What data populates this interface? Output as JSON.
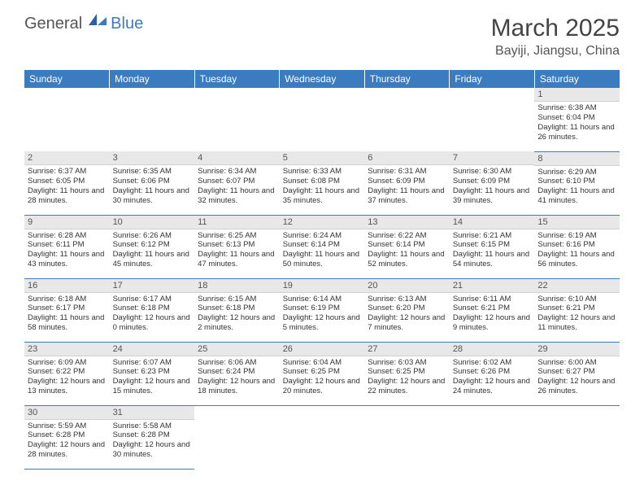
{
  "logo": {
    "text_main": "General",
    "text_accent": "Blue",
    "main_color": "#555555",
    "accent_color": "#3b7bbf"
  },
  "header": {
    "month_title": "March 2025",
    "location": "Bayiji, Jiangsu, China"
  },
  "style": {
    "header_bg": "#3b7bbf",
    "header_text": "#ffffff",
    "daynum_bg": "#e8e8e8",
    "border_color": "#3b7bbf",
    "body_text": "#333333"
  },
  "weekdays": [
    "Sunday",
    "Monday",
    "Tuesday",
    "Wednesday",
    "Thursday",
    "Friday",
    "Saturday"
  ],
  "grid": [
    [
      null,
      null,
      null,
      null,
      null,
      null,
      {
        "n": "1",
        "sr": "6:38 AM",
        "ss": "6:04 PM",
        "dl": "11 hours and 26 minutes."
      }
    ],
    [
      {
        "n": "2",
        "sr": "6:37 AM",
        "ss": "6:05 PM",
        "dl": "11 hours and 28 minutes."
      },
      {
        "n": "3",
        "sr": "6:35 AM",
        "ss": "6:06 PM",
        "dl": "11 hours and 30 minutes."
      },
      {
        "n": "4",
        "sr": "6:34 AM",
        "ss": "6:07 PM",
        "dl": "11 hours and 32 minutes."
      },
      {
        "n": "5",
        "sr": "6:33 AM",
        "ss": "6:08 PM",
        "dl": "11 hours and 35 minutes."
      },
      {
        "n": "6",
        "sr": "6:31 AM",
        "ss": "6:09 PM",
        "dl": "11 hours and 37 minutes."
      },
      {
        "n": "7",
        "sr": "6:30 AM",
        "ss": "6:09 PM",
        "dl": "11 hours and 39 minutes."
      },
      {
        "n": "8",
        "sr": "6:29 AM",
        "ss": "6:10 PM",
        "dl": "11 hours and 41 minutes."
      }
    ],
    [
      {
        "n": "9",
        "sr": "6:28 AM",
        "ss": "6:11 PM",
        "dl": "11 hours and 43 minutes."
      },
      {
        "n": "10",
        "sr": "6:26 AM",
        "ss": "6:12 PM",
        "dl": "11 hours and 45 minutes."
      },
      {
        "n": "11",
        "sr": "6:25 AM",
        "ss": "6:13 PM",
        "dl": "11 hours and 47 minutes."
      },
      {
        "n": "12",
        "sr": "6:24 AM",
        "ss": "6:14 PM",
        "dl": "11 hours and 50 minutes."
      },
      {
        "n": "13",
        "sr": "6:22 AM",
        "ss": "6:14 PM",
        "dl": "11 hours and 52 minutes."
      },
      {
        "n": "14",
        "sr": "6:21 AM",
        "ss": "6:15 PM",
        "dl": "11 hours and 54 minutes."
      },
      {
        "n": "15",
        "sr": "6:19 AM",
        "ss": "6:16 PM",
        "dl": "11 hours and 56 minutes."
      }
    ],
    [
      {
        "n": "16",
        "sr": "6:18 AM",
        "ss": "6:17 PM",
        "dl": "11 hours and 58 minutes."
      },
      {
        "n": "17",
        "sr": "6:17 AM",
        "ss": "6:18 PM",
        "dl": "12 hours and 0 minutes."
      },
      {
        "n": "18",
        "sr": "6:15 AM",
        "ss": "6:18 PM",
        "dl": "12 hours and 2 minutes."
      },
      {
        "n": "19",
        "sr": "6:14 AM",
        "ss": "6:19 PM",
        "dl": "12 hours and 5 minutes."
      },
      {
        "n": "20",
        "sr": "6:13 AM",
        "ss": "6:20 PM",
        "dl": "12 hours and 7 minutes."
      },
      {
        "n": "21",
        "sr": "6:11 AM",
        "ss": "6:21 PM",
        "dl": "12 hours and 9 minutes."
      },
      {
        "n": "22",
        "sr": "6:10 AM",
        "ss": "6:21 PM",
        "dl": "12 hours and 11 minutes."
      }
    ],
    [
      {
        "n": "23",
        "sr": "6:09 AM",
        "ss": "6:22 PM",
        "dl": "12 hours and 13 minutes."
      },
      {
        "n": "24",
        "sr": "6:07 AM",
        "ss": "6:23 PM",
        "dl": "12 hours and 15 minutes."
      },
      {
        "n": "25",
        "sr": "6:06 AM",
        "ss": "6:24 PM",
        "dl": "12 hours and 18 minutes."
      },
      {
        "n": "26",
        "sr": "6:04 AM",
        "ss": "6:25 PM",
        "dl": "12 hours and 20 minutes."
      },
      {
        "n": "27",
        "sr": "6:03 AM",
        "ss": "6:25 PM",
        "dl": "12 hours and 22 minutes."
      },
      {
        "n": "28",
        "sr": "6:02 AM",
        "ss": "6:26 PM",
        "dl": "12 hours and 24 minutes."
      },
      {
        "n": "29",
        "sr": "6:00 AM",
        "ss": "6:27 PM",
        "dl": "12 hours and 26 minutes."
      }
    ],
    [
      {
        "n": "30",
        "sr": "5:59 AM",
        "ss": "6:28 PM",
        "dl": "12 hours and 28 minutes."
      },
      {
        "n": "31",
        "sr": "5:58 AM",
        "ss": "6:28 PM",
        "dl": "12 hours and 30 minutes."
      },
      null,
      null,
      null,
      null,
      null
    ]
  ],
  "labels": {
    "sunrise": "Sunrise:",
    "sunset": "Sunset:",
    "daylight": "Daylight:"
  }
}
